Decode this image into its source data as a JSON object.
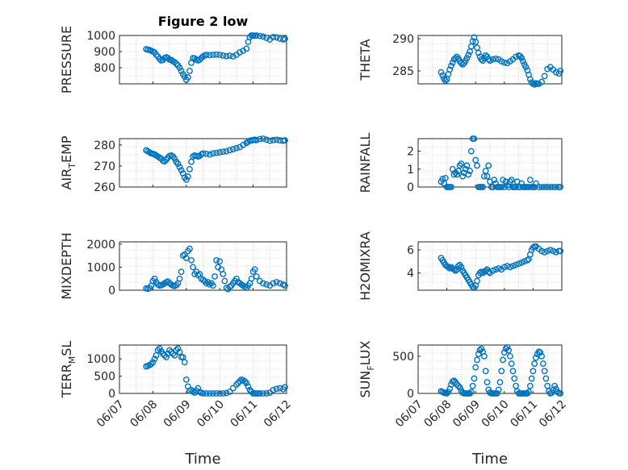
{
  "colors": {
    "marker": "#0072bd",
    "axis": "#262626",
    "grid": "#b0b0b0"
  },
  "x_tick_labels": [
    "06/07",
    "06/08",
    "06/09",
    "06/10",
    "06/11",
    "06/12"
  ],
  "x_label": "Time",
  "chart_data": [
    {
      "type": "scatter",
      "title": "Figure 2 low",
      "ylabel": "PRESSURE",
      "ylabel_sub": "",
      "ylabel_tail": "",
      "xlim": [
        0,
        5
      ],
      "ylim": [
        700,
        1000
      ],
      "yticks": [
        {
          "v": 800,
          "label": "800"
        },
        {
          "v": 900,
          "label": "900"
        },
        {
          "v": 1000,
          "label": "1000"
        }
      ],
      "x": [
        0.8,
        0.85,
        0.9,
        0.95,
        1.0,
        1.05,
        1.1,
        1.15,
        1.2,
        1.25,
        1.3,
        1.35,
        1.4,
        1.45,
        1.5,
        1.55,
        1.6,
        1.65,
        1.7,
        1.75,
        1.8,
        1.85,
        1.9,
        1.95,
        2.0,
        2.05,
        2.1,
        2.15,
        2.2,
        2.25,
        2.3,
        2.35,
        2.4,
        2.45,
        2.5,
        2.55,
        2.6,
        2.7,
        2.8,
        2.9,
        3.0,
        3.1,
        3.2,
        3.3,
        3.4,
        3.5,
        3.6,
        3.7,
        3.8,
        3.85,
        3.9,
        3.95,
        4.0,
        4.05,
        4.1,
        4.2,
        4.3,
        4.4,
        4.5,
        4.6,
        4.7,
        4.8,
        4.9,
        4.95
      ],
      "y": [
        915,
        912,
        910,
        905,
        900,
        895,
        880,
        870,
        855,
        845,
        848,
        860,
        865,
        860,
        850,
        848,
        840,
        835,
        825,
        815,
        800,
        780,
        760,
        745,
        725,
        740,
        780,
        830,
        860,
        858,
        850,
        845,
        850,
        860,
        870,
        875,
        880,
        878,
        880,
        882,
        880,
        875,
        872,
        875,
        870,
        880,
        895,
        905,
        918,
        960,
        990,
        1000,
        1000,
        998,
        1000,
        997,
        993,
        985,
        975,
        990,
        988,
        980,
        975,
        980
      ]
    },
    {
      "type": "scatter",
      "title": "",
      "ylabel": "THETA",
      "ylabel_sub": "",
      "ylabel_tail": "",
      "xlim": [
        0,
        5
      ],
      "ylim": [
        283,
        290.5
      ],
      "yticks": [
        {
          "v": 285,
          "label": "285"
        },
        {
          "v": 290,
          "label": "290"
        }
      ],
      "x": [
        0.8,
        0.85,
        0.9,
        0.95,
        1.0,
        1.05,
        1.1,
        1.15,
        1.2,
        1.25,
        1.3,
        1.35,
        1.4,
        1.45,
        1.5,
        1.55,
        1.6,
        1.65,
        1.7,
        1.75,
        1.8,
        1.85,
        1.9,
        1.95,
        2.0,
        2.05,
        2.1,
        2.15,
        2.2,
        2.25,
        2.3,
        2.35,
        2.4,
        2.45,
        2.5,
        2.6,
        2.7,
        2.8,
        2.9,
        3.0,
        3.1,
        3.2,
        3.3,
        3.4,
        3.5,
        3.55,
        3.6,
        3.65,
        3.7,
        3.75,
        3.8,
        3.85,
        3.9,
        3.95,
        4.0,
        4.05,
        4.1,
        4.15,
        4.2,
        4.3,
        4.4,
        4.5,
        4.6,
        4.7,
        4.8,
        4.9,
        4.95
      ],
      "y": [
        284.8,
        284.3,
        283.8,
        283.5,
        283.7,
        284.5,
        285.2,
        285.8,
        286.3,
        286.8,
        287.0,
        287.2,
        286.9,
        286.5,
        286.2,
        286.0,
        286.2,
        286.6,
        287.0,
        287.5,
        288.0,
        288.8,
        289.6,
        290.2,
        289.5,
        288.6,
        287.8,
        287.2,
        286.8,
        286.6,
        287.0,
        287.4,
        287.2,
        286.8,
        286.6,
        286.8,
        286.9,
        286.8,
        286.5,
        286.3,
        286.2,
        286.5,
        286.8,
        287.2,
        287.4,
        287.3,
        287.0,
        286.5,
        286.0,
        285.6,
        285.1,
        284.4,
        283.7,
        283.2,
        283.0,
        282.9,
        283.1,
        283.0,
        283.0,
        283.3,
        284.2,
        285.3,
        285.6,
        285.2,
        284.8,
        284.6,
        285.0
      ]
    },
    {
      "type": "scatter",
      "title": "",
      "ylabel": "AIR",
      "ylabel_sub": "T",
      "ylabel_tail": "EMP",
      "xlim": [
        0,
        5
      ],
      "ylim": [
        260,
        283
      ],
      "yticks": [
        {
          "v": 260,
          "label": "260"
        },
        {
          "v": 270,
          "label": "270"
        },
        {
          "v": 280,
          "label": "280"
        }
      ],
      "x": [
        0.8,
        0.85,
        0.9,
        0.95,
        1.0,
        1.05,
        1.1,
        1.15,
        1.2,
        1.25,
        1.3,
        1.35,
        1.4,
        1.45,
        1.5,
        1.55,
        1.6,
        1.65,
        1.7,
        1.75,
        1.8,
        1.85,
        1.9,
        1.95,
        2.0,
        2.05,
        2.1,
        2.15,
        2.2,
        2.25,
        2.3,
        2.35,
        2.4,
        2.45,
        2.5,
        2.6,
        2.7,
        2.8,
        2.9,
        3.0,
        3.1,
        3.2,
        3.3,
        3.4,
        3.5,
        3.6,
        3.7,
        3.8,
        3.85,
        3.9,
        3.95,
        4.0,
        4.05,
        4.1,
        4.2,
        4.3,
        4.4,
        4.5,
        4.6,
        4.7,
        4.8,
        4.9,
        4.95
      ],
      "y": [
        277.5,
        277.0,
        276.5,
        276.0,
        275.8,
        275.5,
        275.0,
        274.5,
        274.0,
        273.5,
        272.5,
        272.2,
        273.0,
        274.0,
        274.8,
        275.0,
        274.5,
        273.5,
        272.0,
        271.0,
        269.5,
        268.0,
        266.5,
        264.5,
        263.5,
        265.0,
        268.5,
        272.0,
        274.5,
        275.0,
        274.8,
        274.5,
        274.8,
        275.5,
        276.0,
        275.8,
        275.5,
        276.0,
        276.2,
        276.5,
        276.8,
        277.0,
        277.5,
        278.0,
        278.5,
        279.0,
        280.0,
        281.0,
        281.5,
        282.0,
        282.2,
        282.3,
        282.5,
        282.3,
        282.8,
        283.0,
        282.5,
        282.0,
        282.3,
        282.5,
        282.2,
        282.0,
        282.2
      ]
    },
    {
      "type": "scatter",
      "title": "",
      "ylabel": "RAINFALL",
      "ylabel_sub": "",
      "ylabel_tail": "",
      "xlim": [
        0,
        5
      ],
      "ylim": [
        0,
        2.7
      ],
      "yticks": [
        {
          "v": 0,
          "label": "0"
        },
        {
          "v": 1,
          "label": "1"
        },
        {
          "v": 2,
          "label": "2"
        }
      ],
      "x": [
        0.8,
        0.85,
        0.9,
        0.95,
        1.0,
        1.05,
        1.1,
        1.15,
        1.2,
        1.25,
        1.3,
        1.35,
        1.4,
        1.45,
        1.5,
        1.55,
        1.6,
        1.65,
        1.7,
        1.75,
        1.8,
        1.85,
        1.9,
        1.95,
        2.0,
        2.05,
        2.1,
        2.15,
        2.2,
        2.25,
        2.3,
        2.35,
        2.4,
        2.45,
        2.5,
        2.55,
        2.6,
        2.65,
        2.7,
        2.75,
        2.8,
        2.85,
        2.9,
        2.95,
        3.0,
        3.05,
        3.1,
        3.15,
        3.2,
        3.25,
        3.3,
        3.35,
        3.4,
        3.45,
        3.5,
        3.55,
        3.6,
        3.65,
        3.7,
        3.75,
        3.8,
        3.85,
        3.9,
        3.95,
        4.0,
        4.05,
        4.1,
        4.2,
        4.3,
        4.4,
        4.5,
        4.6,
        4.7,
        4.8,
        4.9,
        4.95
      ],
      "y": [
        0.3,
        0.45,
        0.2,
        0.5,
        0.0,
        0.0,
        0.0,
        0.0,
        1.0,
        0.7,
        0.8,
        0.7,
        0.9,
        1.2,
        1.3,
        0.6,
        0.8,
        1.0,
        1.2,
        0.7,
        0.9,
        2.0,
        2.7,
        2.7,
        1.5,
        1.2,
        0.0,
        0.0,
        0.0,
        0.0,
        0.6,
        0.9,
        0.6,
        1.2,
        0.3,
        0.0,
        0.0,
        0.4,
        0.2,
        0.0,
        0.0,
        0.0,
        0.0,
        0.4,
        0.0,
        0.3,
        0.1,
        0.0,
        0.3,
        0.4,
        0.0,
        0.0,
        0.0,
        0.3,
        0.0,
        0.0,
        0.2,
        0.0,
        0.0,
        0.0,
        0.0,
        0.0,
        0.4,
        0.0,
        0.0,
        0.0,
        0.2,
        0.0,
        0.0,
        0.0,
        0.0,
        0.0,
        0.0,
        0.0,
        0.0,
        0.0
      ]
    },
    {
      "type": "scatter",
      "title": "",
      "ylabel": "MIXDEPTH",
      "ylabel_sub": "",
      "ylabel_tail": "",
      "xlim": [
        0,
        5
      ],
      "ylim": [
        0,
        2100
      ],
      "yticks": [
        {
          "v": 0,
          "label": "0"
        },
        {
          "v": 1000,
          "label": "1000"
        },
        {
          "v": 2000,
          "label": "2000"
        }
      ],
      "x": [
        0.8,
        0.85,
        0.9,
        0.95,
        1.0,
        1.05,
        1.1,
        1.15,
        1.2,
        1.25,
        1.3,
        1.35,
        1.4,
        1.45,
        1.5,
        1.55,
        1.6,
        1.65,
        1.7,
        1.75,
        1.8,
        1.85,
        1.9,
        1.95,
        2.0,
        2.05,
        2.1,
        2.15,
        2.2,
        2.25,
        2.3,
        2.35,
        2.4,
        2.45,
        2.5,
        2.55,
        2.6,
        2.65,
        2.7,
        2.75,
        2.8,
        2.85,
        2.9,
        2.95,
        3.0,
        3.05,
        3.1,
        3.15,
        3.2,
        3.25,
        3.3,
        3.35,
        3.4,
        3.45,
        3.5,
        3.55,
        3.6,
        3.65,
        3.7,
        3.75,
        3.8,
        3.85,
        3.9,
        3.95,
        4.0,
        4.05,
        4.1,
        4.2,
        4.3,
        4.4,
        4.5,
        4.6,
        4.7,
        4.8,
        4.9,
        4.95
      ],
      "y": [
        80,
        60,
        100,
        200,
        400,
        500,
        350,
        250,
        200,
        220,
        250,
        300,
        350,
        380,
        300,
        250,
        200,
        180,
        220,
        300,
        500,
        800,
        1500,
        1550,
        1400,
        1700,
        1800,
        1300,
        1000,
        700,
        800,
        650,
        700,
        500,
        450,
        400,
        300,
        350,
        250,
        300,
        200,
        600,
        1300,
        1000,
        1250,
        900,
        700,
        400,
        100,
        50,
        150,
        200,
        300,
        400,
        500,
        350,
        300,
        250,
        200,
        150,
        100,
        200,
        300,
        500,
        800,
        900,
        600,
        400,
        300,
        250,
        200,
        300,
        350,
        300,
        250,
        200
      ]
    },
    {
      "type": "scatter",
      "title": "",
      "ylabel": "H2OMIXRA",
      "ylabel_sub": "",
      "ylabel_tail": "",
      "xlim": [
        0,
        5
      ],
      "ylim": [
        2.5,
        6.7
      ],
      "yticks": [
        {
          "v": 4,
          "label": "4"
        },
        {
          "v": 6,
          "label": "6"
        }
      ],
      "x": [
        0.8,
        0.85,
        0.9,
        0.95,
        1.0,
        1.05,
        1.1,
        1.15,
        1.2,
        1.25,
        1.3,
        1.35,
        1.4,
        1.45,
        1.5,
        1.55,
        1.6,
        1.65,
        1.7,
        1.75,
        1.8,
        1.85,
        1.9,
        1.95,
        2.0,
        2.05,
        2.1,
        2.15,
        2.2,
        2.25,
        2.3,
        2.35,
        2.4,
        2.45,
        2.5,
        2.6,
        2.7,
        2.8,
        2.9,
        3.0,
        3.1,
        3.2,
        3.3,
        3.4,
        3.5,
        3.6,
        3.7,
        3.8,
        3.85,
        3.9,
        3.95,
        4.0,
        4.05,
        4.1,
        4.2,
        4.3,
        4.4,
        4.5,
        4.6,
        4.7,
        4.8,
        4.9,
        4.95
      ],
      "y": [
        5.3,
        5.1,
        4.9,
        4.7,
        4.6,
        4.5,
        4.4,
        4.5,
        4.4,
        4.3,
        4.2,
        4.3,
        4.6,
        4.7,
        4.5,
        4.2,
        4.0,
        3.8,
        3.6,
        3.4,
        3.2,
        3.0,
        2.8,
        2.7,
        2.9,
        3.3,
        3.8,
        4.0,
        4.1,
        4.0,
        4.1,
        4.2,
        4.3,
        4.1,
        4.0,
        4.2,
        4.3,
        4.4,
        4.3,
        4.5,
        4.6,
        4.5,
        4.6,
        4.7,
        4.8,
        4.9,
        5.0,
        5.1,
        5.2,
        5.6,
        6.0,
        6.2,
        6.3,
        6.3,
        6.1,
        5.9,
        5.8,
        5.9,
        6.0,
        5.9,
        5.8,
        5.9,
        5.9
      ]
    },
    {
      "type": "scatter",
      "title": "",
      "ylabel": "TERR",
      "ylabel_sub": "M",
      "ylabel_tail": "SL",
      "xlim": [
        0,
        5
      ],
      "ylim": [
        0,
        1400
      ],
      "yticks": [
        {
          "v": 0,
          "label": "0"
        },
        {
          "v": 500,
          "label": "500"
        },
        {
          "v": 1000,
          "label": "1000"
        }
      ],
      "x": [
        0.8,
        0.85,
        0.9,
        0.95,
        1.0,
        1.05,
        1.1,
        1.15,
        1.2,
        1.25,
        1.3,
        1.35,
        1.4,
        1.45,
        1.5,
        1.55,
        1.6,
        1.65,
        1.7,
        1.75,
        1.8,
        1.85,
        1.9,
        1.95,
        2.0,
        2.05,
        2.1,
        2.15,
        2.2,
        2.25,
        2.3,
        2.35,
        2.4,
        2.45,
        2.5,
        2.6,
        2.7,
        2.8,
        2.9,
        3.0,
        3.1,
        3.2,
        3.3,
        3.4,
        3.5,
        3.55,
        3.6,
        3.65,
        3.7,
        3.75,
        3.8,
        3.85,
        3.9,
        3.95,
        4.0,
        4.05,
        4.1,
        4.15,
        4.2,
        4.3,
        4.4,
        4.5,
        4.6,
        4.7,
        4.8,
        4.9,
        4.95
      ],
      "y": [
        780,
        800,
        820,
        850,
        900,
        1000,
        1100,
        1250,
        1300,
        1220,
        1150,
        1100,
        1050,
        1150,
        1250,
        1200,
        1150,
        1100,
        1250,
        1300,
        1200,
        1050,
        1050,
        900,
        400,
        200,
        80,
        100,
        50,
        20,
        80,
        150,
        40,
        20,
        0,
        0,
        0,
        0,
        0,
        0,
        0,
        10,
        50,
        150,
        250,
        300,
        350,
        400,
        380,
        350,
        300,
        200,
        100,
        50,
        0,
        0,
        0,
        0,
        0,
        0,
        0,
        20,
        100,
        130,
        150,
        120,
        180
      ]
    },
    {
      "type": "scatter",
      "title": "",
      "ylabel": "SUN",
      "ylabel_sub": "F",
      "ylabel_tail": "LUX",
      "xlim": [
        0,
        5
      ],
      "ylim": [
        0,
        650
      ],
      "yticks": [
        {
          "v": 0,
          "label": "0"
        },
        {
          "v": 500,
          "label": "500"
        }
      ],
      "x": [
        0.8,
        0.85,
        0.9,
        0.95,
        1.0,
        1.05,
        1.1,
        1.15,
        1.2,
        1.25,
        1.3,
        1.35,
        1.4,
        1.45,
        1.5,
        1.55,
        1.6,
        1.65,
        1.7,
        1.75,
        1.8,
        1.85,
        1.9,
        1.95,
        2.0,
        2.05,
        2.1,
        2.15,
        2.2,
        2.25,
        2.3,
        2.35,
        2.4,
        2.45,
        2.5,
        2.55,
        2.6,
        2.65,
        2.7,
        2.75,
        2.8,
        2.85,
        2.9,
        2.95,
        3.0,
        3.05,
        3.1,
        3.15,
        3.2,
        3.25,
        3.3,
        3.35,
        3.4,
        3.45,
        3.5,
        3.55,
        3.6,
        3.65,
        3.7,
        3.75,
        3.8,
        3.85,
        3.9,
        3.95,
        4.0,
        4.05,
        4.1,
        4.15,
        4.2,
        4.25,
        4.3,
        4.35,
        4.4,
        4.45,
        4.5,
        4.55,
        4.6,
        4.65,
        4.7,
        4.75,
        4.8,
        4.85,
        4.9,
        4.95
      ],
      "y": [
        30,
        20,
        10,
        5,
        0,
        20,
        60,
        120,
        160,
        170,
        150,
        120,
        100,
        80,
        40,
        10,
        0,
        0,
        0,
        0,
        0,
        20,
        100,
        200,
        350,
        450,
        530,
        580,
        600,
        560,
        500,
        300,
        150,
        50,
        10,
        0,
        0,
        0,
        0,
        0,
        50,
        150,
        300,
        450,
        550,
        600,
        620,
        580,
        500,
        400,
        300,
        200,
        100,
        30,
        0,
        0,
        0,
        0,
        0,
        0,
        0,
        20,
        100,
        200,
        300,
        400,
        480,
        530,
        560,
        550,
        500,
        400,
        300,
        200,
        100,
        30,
        0,
        10,
        50,
        100,
        60,
        20,
        5,
        0
      ]
    }
  ]
}
